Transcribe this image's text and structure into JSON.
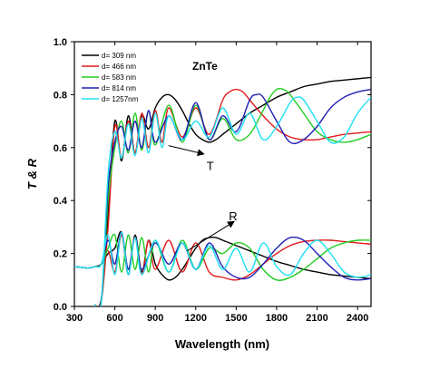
{
  "chart_data": {
    "type": "line",
    "title": "ZnTe",
    "xlabel": "Wavelength (nm)",
    "ylabel": "T & R",
    "xlim": [
      300,
      2500
    ],
    "ylim": [
      0.0,
      1.0
    ],
    "xticks": [
      300,
      600,
      900,
      1200,
      1500,
      1800,
      2100,
      2400
    ],
    "yticks": [
      "0.0",
      "0.2",
      "0.4",
      "0.6",
      "0.8",
      "1.0"
    ],
    "legend_position": "top-left",
    "annotations": [
      {
        "text": "T",
        "points_to": [
          1200,
          0.58
        ]
      },
      {
        "text": "R",
        "points_to": [
          1230,
          0.23
        ]
      }
    ],
    "series": [
      {
        "name": "d= 309 nm",
        "color": "#000000",
        "transmission": {
          "x": [
            450,
            500,
            550,
            600,
            650,
            700,
            750,
            800,
            850,
            900,
            950,
            1000,
            1050,
            1100,
            1150,
            1200,
            1250,
            1300,
            1350,
            1400,
            1450,
            1500,
            1600,
            1700,
            1800,
            1900,
            2000,
            2100,
            2200,
            2300,
            2400,
            2500
          ],
          "y": [
            0.005,
            0.03,
            0.35,
            0.7,
            0.55,
            0.72,
            0.58,
            0.72,
            0.67,
            0.75,
            0.79,
            0.8,
            0.78,
            0.74,
            0.69,
            0.65,
            0.63,
            0.62,
            0.63,
            0.65,
            0.67,
            0.69,
            0.73,
            0.76,
            0.79,
            0.81,
            0.83,
            0.84,
            0.85,
            0.855,
            0.86,
            0.865
          ]
        },
        "reflection": {
          "x": [
            300,
            350,
            400,
            450,
            500,
            550,
            600,
            650,
            700,
            750,
            800,
            850,
            900,
            950,
            1000,
            1050,
            1100,
            1150,
            1200,
            1250,
            1300,
            1350,
            1400,
            1500,
            1600,
            1700,
            1800,
            1900,
            2000,
            2100,
            2200,
            2300,
            2400,
            2500
          ],
          "y": [
            0.15,
            0.148,
            0.145,
            0.15,
            0.16,
            0.2,
            0.22,
            0.28,
            0.12,
            0.27,
            0.13,
            0.25,
            0.16,
            0.12,
            0.1,
            0.11,
            0.14,
            0.18,
            0.22,
            0.25,
            0.26,
            0.26,
            0.25,
            0.23,
            0.21,
            0.19,
            0.17,
            0.155,
            0.14,
            0.13,
            0.12,
            0.115,
            0.11,
            0.105
          ]
        }
      },
      {
        "name": "d= 466 nm",
        "color": "#e31a1c",
        "transmission": {
          "x": [
            450,
            500,
            550,
            600,
            650,
            700,
            750,
            800,
            850,
            900,
            950,
            1000,
            1100,
            1200,
            1300,
            1400,
            1450,
            1500,
            1550,
            1600,
            1700,
            1800,
            1900,
            2000,
            2100,
            2200,
            2300,
            2400,
            2500
          ],
          "y": [
            0.005,
            0.02,
            0.3,
            0.68,
            0.56,
            0.7,
            0.58,
            0.73,
            0.6,
            0.74,
            0.62,
            0.75,
            0.64,
            0.75,
            0.65,
            0.78,
            0.81,
            0.82,
            0.81,
            0.78,
            0.72,
            0.67,
            0.64,
            0.63,
            0.63,
            0.64,
            0.65,
            0.655,
            0.66
          ]
        },
        "reflection": {
          "x": [
            300,
            350,
            400,
            450,
            500,
            550,
            600,
            650,
            700,
            750,
            800,
            850,
            900,
            1000,
            1100,
            1200,
            1300,
            1400,
            1500,
            1600,
            1700,
            1800,
            1900,
            2000,
            2100,
            2200,
            2300,
            2400,
            2500
          ],
          "y": [
            0.15,
            0.148,
            0.145,
            0.15,
            0.16,
            0.21,
            0.13,
            0.27,
            0.14,
            0.26,
            0.12,
            0.25,
            0.14,
            0.25,
            0.13,
            0.24,
            0.13,
            0.11,
            0.1,
            0.12,
            0.16,
            0.2,
            0.23,
            0.245,
            0.25,
            0.25,
            0.245,
            0.24,
            0.235
          ]
        }
      },
      {
        "name": "d= 583 nm",
        "color": "#22cc22",
        "transmission": {
          "x": [
            450,
            500,
            550,
            600,
            650,
            700,
            750,
            800,
            850,
            900,
            1000,
            1100,
            1200,
            1300,
            1400,
            1500,
            1600,
            1700,
            1750,
            1800,
            1850,
            1900,
            2000,
            2100,
            2200,
            2300,
            2400,
            2500
          ],
          "y": [
            0.005,
            0.02,
            0.4,
            0.6,
            0.7,
            0.58,
            0.73,
            0.59,
            0.74,
            0.61,
            0.76,
            0.62,
            0.76,
            0.63,
            0.71,
            0.63,
            0.65,
            0.74,
            0.79,
            0.82,
            0.82,
            0.8,
            0.73,
            0.66,
            0.63,
            0.62,
            0.63,
            0.65
          ]
        },
        "reflection": {
          "x": [
            300,
            350,
            400,
            450,
            500,
            550,
            600,
            650,
            700,
            750,
            800,
            850,
            900,
            1000,
            1100,
            1200,
            1300,
            1400,
            1500,
            1600,
            1700,
            1800,
            1900,
            2000,
            2100,
            2200,
            2300,
            2400,
            2500
          ],
          "y": [
            0.15,
            0.148,
            0.145,
            0.15,
            0.16,
            0.22,
            0.27,
            0.13,
            0.27,
            0.14,
            0.26,
            0.13,
            0.25,
            0.13,
            0.25,
            0.14,
            0.22,
            0.2,
            0.24,
            0.22,
            0.14,
            0.1,
            0.11,
            0.14,
            0.18,
            0.22,
            0.24,
            0.25,
            0.25
          ]
        }
      },
      {
        "name": "d= 814 nm",
        "color": "#1f1fb4",
        "transmission": {
          "x": [
            450,
            500,
            550,
            600,
            650,
            700,
            750,
            800,
            850,
            900,
            1000,
            1100,
            1200,
            1300,
            1400,
            1500,
            1600,
            1650,
            1700,
            1800,
            1900,
            2000,
            2100,
            2200,
            2300,
            2400,
            2500
          ],
          "y": [
            0.005,
            0.02,
            0.45,
            0.62,
            0.68,
            0.59,
            0.7,
            0.6,
            0.74,
            0.62,
            0.72,
            0.63,
            0.77,
            0.63,
            0.72,
            0.66,
            0.78,
            0.8,
            0.79,
            0.7,
            0.62,
            0.63,
            0.68,
            0.75,
            0.79,
            0.81,
            0.82
          ]
        },
        "reflection": {
          "x": [
            300,
            350,
            400,
            450,
            500,
            550,
            600,
            650,
            700,
            750,
            800,
            900,
            1000,
            1100,
            1200,
            1300,
            1400,
            1500,
            1600,
            1700,
            1800,
            1900,
            2000,
            2100,
            2200,
            2300,
            2400,
            2500
          ],
          "y": [
            0.15,
            0.148,
            0.145,
            0.15,
            0.16,
            0.25,
            0.16,
            0.28,
            0.14,
            0.26,
            0.14,
            0.24,
            0.16,
            0.24,
            0.14,
            0.24,
            0.15,
            0.11,
            0.11,
            0.16,
            0.22,
            0.26,
            0.25,
            0.2,
            0.15,
            0.11,
            0.1,
            0.105
          ]
        }
      },
      {
        "name": "d= 1257nm",
        "color": "#1ee0f0",
        "transmission": {
          "x": [
            450,
            500,
            550,
            600,
            650,
            700,
            750,
            800,
            850,
            900,
            950,
            1000,
            1100,
            1200,
            1300,
            1400,
            1500,
            1600,
            1700,
            1800,
            1900,
            1950,
            2000,
            2100,
            2200,
            2300,
            2400,
            2500
          ],
          "y": [
            0.005,
            0.02,
            0.5,
            0.66,
            0.56,
            0.69,
            0.57,
            0.71,
            0.58,
            0.73,
            0.6,
            0.72,
            0.63,
            0.7,
            0.64,
            0.75,
            0.65,
            0.73,
            0.63,
            0.68,
            0.77,
            0.79,
            0.78,
            0.7,
            0.62,
            0.64,
            0.73,
            0.79
          ]
        },
        "reflection": {
          "x": [
            300,
            350,
            400,
            450,
            500,
            550,
            600,
            650,
            700,
            750,
            800,
            900,
            1000,
            1100,
            1200,
            1300,
            1400,
            1500,
            1600,
            1700,
            1800,
            1900,
            2000,
            2100,
            2200,
            2300,
            2400,
            2500
          ],
          "y": [
            0.15,
            0.148,
            0.145,
            0.15,
            0.16,
            0.27,
            0.12,
            0.28,
            0.12,
            0.26,
            0.12,
            0.25,
            0.13,
            0.24,
            0.14,
            0.23,
            0.14,
            0.22,
            0.13,
            0.24,
            0.15,
            0.12,
            0.2,
            0.25,
            0.2,
            0.13,
            0.11,
            0.12
          ]
        }
      }
    ]
  }
}
